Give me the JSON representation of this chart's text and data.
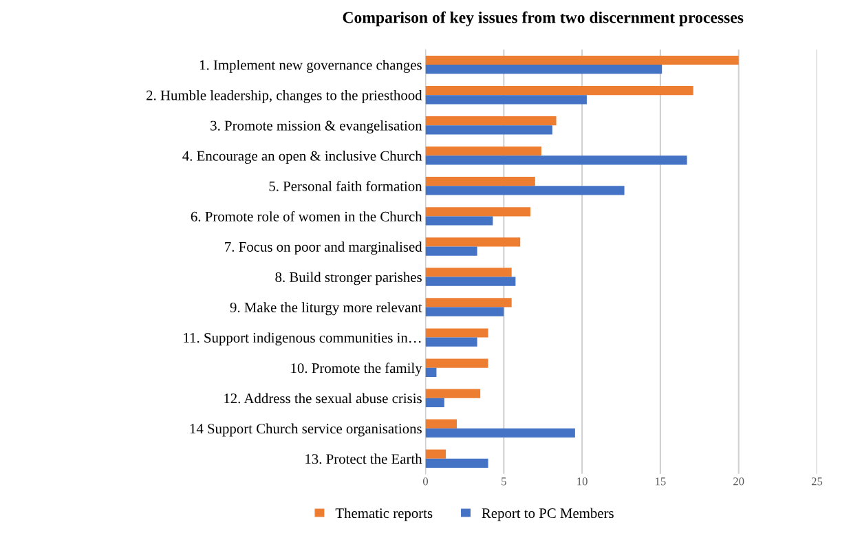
{
  "chart_data": {
    "type": "bar",
    "orientation": "horizontal",
    "title": "Comparison of key issues from two discernment processes",
    "categories": [
      "1. Implement new governance changes",
      "2. Humble leadership, changes to the priesthood",
      "3. Promote mission & evangelisation",
      "4. Encourage an open & inclusive Church",
      "5. Personal faith formation",
      "6. Promote role of women in the Church",
      "7. Focus on poor and marginalised",
      "8. Build stronger parishes",
      "9. Make the liturgy more relevant",
      "11. Support indigenous communities in…",
      "10. Promote the family",
      "12. Address the sexual abuse crisis",
      "14 Support Church service organisations",
      "13. Protect the Earth"
    ],
    "series": [
      {
        "name": "Thematic reports",
        "color": "#ed7d31",
        "values": [
          20.0,
          17.1,
          8.35,
          7.4,
          7.0,
          6.7,
          6.05,
          5.5,
          5.5,
          4.0,
          4.0,
          3.5,
          2.0,
          1.3
        ]
      },
      {
        "name": "Report to PC Members",
        "color": "#4472c4",
        "values": [
          15.1,
          10.3,
          8.1,
          16.7,
          12.7,
          4.3,
          3.3,
          5.75,
          5.0,
          3.3,
          0.7,
          1.2,
          9.55,
          4.0
        ]
      }
    ],
    "xlim": [
      0,
      25
    ],
    "xticks": [
      0,
      5,
      10,
      15,
      20,
      25
    ],
    "grid": "x",
    "legend": "bottom"
  }
}
